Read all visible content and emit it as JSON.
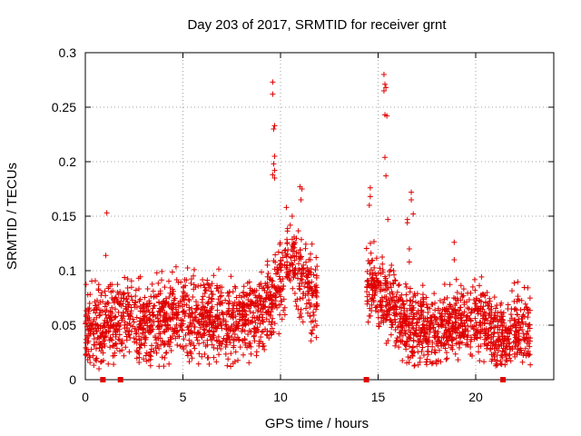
{
  "chart_data": {
    "type": "scatter",
    "title": "Day 203 of 2017, SRMTID for receiver grnt",
    "xlabel": "GPS time / hours",
    "ylabel": "SRMTID / TECUs",
    "xlim": [
      0,
      24
    ],
    "ylim": [
      0,
      0.3
    ],
    "xticks": [
      0,
      5,
      10,
      15,
      20
    ],
    "yticks": [
      0,
      0.05,
      0.1,
      0.15,
      0.2,
      0.25,
      0.3
    ],
    "xtick_labels": [
      "0",
      "5",
      "10",
      "15",
      "20"
    ],
    "ytick_labels": [
      "0",
      "0.05",
      "0.1",
      "0.15",
      "0.2",
      "0.25",
      "0.3"
    ],
    "grid": true,
    "marker": "+",
    "color": "#e00000",
    "series": [
      {
        "name": "SRMTID",
        "segments": [
          {
            "start": 0.0,
            "end": 11.9,
            "base": [
              [
                0,
                0.045
              ],
              [
                1,
                0.05
              ],
              [
                2,
                0.06
              ],
              [
                3,
                0.05
              ],
              [
                4,
                0.055
              ],
              [
                5,
                0.06
              ],
              [
                6,
                0.055
              ],
              [
                7,
                0.055
              ],
              [
                8,
                0.055
              ],
              [
                9,
                0.06
              ],
              [
                9.5,
                0.07
              ],
              [
                10,
                0.09
              ],
              [
                10.5,
                0.11
              ],
              [
                11,
                0.1
              ],
              [
                11.5,
                0.08
              ],
              [
                11.9,
                0.07
              ]
            ],
            "spread": 0.018,
            "n": 1500
          },
          {
            "start": 14.4,
            "end": 22.8,
            "base": [
              [
                14.4,
                0.09
              ],
              [
                15,
                0.08
              ],
              [
                15.5,
                0.07
              ],
              [
                16,
                0.06
              ],
              [
                16.5,
                0.05
              ],
              [
                17,
                0.045
              ],
              [
                18,
                0.045
              ],
              [
                19,
                0.055
              ],
              [
                20,
                0.055
              ],
              [
                21,
                0.045
              ],
              [
                21.5,
                0.035
              ],
              [
                22,
                0.05
              ],
              [
                22.8,
                0.045
              ]
            ],
            "spread": 0.016,
            "n": 1100
          }
        ],
        "spikes": [
          {
            "x": 0.7,
            "y": 0.01
          },
          {
            "x": 1.1,
            "y": 0.153
          },
          {
            "x": 1.05,
            "y": 0.114
          },
          {
            "x": 9.6,
            "y": 0.273
          },
          {
            "x": 9.6,
            "y": 0.262
          },
          {
            "x": 9.7,
            "y": 0.233
          },
          {
            "x": 9.65,
            "y": 0.23
          },
          {
            "x": 9.7,
            "y": 0.205
          },
          {
            "x": 9.65,
            "y": 0.198
          },
          {
            "x": 9.7,
            "y": 0.192
          },
          {
            "x": 9.6,
            "y": 0.188
          },
          {
            "x": 9.7,
            "y": 0.185
          },
          {
            "x": 10.3,
            "y": 0.158
          },
          {
            "x": 11.0,
            "y": 0.177
          },
          {
            "x": 11.1,
            "y": 0.175
          },
          {
            "x": 11.05,
            "y": 0.165
          },
          {
            "x": 10.6,
            "y": 0.15
          },
          {
            "x": 14.6,
            "y": 0.176
          },
          {
            "x": 14.6,
            "y": 0.168
          },
          {
            "x": 14.55,
            "y": 0.16
          },
          {
            "x": 15.3,
            "y": 0.28
          },
          {
            "x": 15.35,
            "y": 0.271
          },
          {
            "x": 15.4,
            "y": 0.268
          },
          {
            "x": 15.3,
            "y": 0.265
          },
          {
            "x": 15.35,
            "y": 0.243
          },
          {
            "x": 15.45,
            "y": 0.242
          },
          {
            "x": 15.35,
            "y": 0.204
          },
          {
            "x": 15.4,
            "y": 0.187
          },
          {
            "x": 15.5,
            "y": 0.147
          },
          {
            "x": 16.5,
            "y": 0.147
          },
          {
            "x": 16.5,
            "y": 0.144
          },
          {
            "x": 16.6,
            "y": 0.12
          },
          {
            "x": 16.6,
            "y": 0.108
          },
          {
            "x": 16.7,
            "y": 0.172
          },
          {
            "x": 16.7,
            "y": 0.165
          },
          {
            "x": 16.8,
            "y": 0.152
          },
          {
            "x": 18.9,
            "y": 0.126
          },
          {
            "x": 18.9,
            "y": 0.11
          },
          {
            "x": 21.6,
            "y": 0.017
          },
          {
            "x": 22.4,
            "y": 0.016
          }
        ],
        "gap_markers_x": [
          0.9,
          1.8,
          14.4,
          21.4
        ]
      }
    ]
  }
}
